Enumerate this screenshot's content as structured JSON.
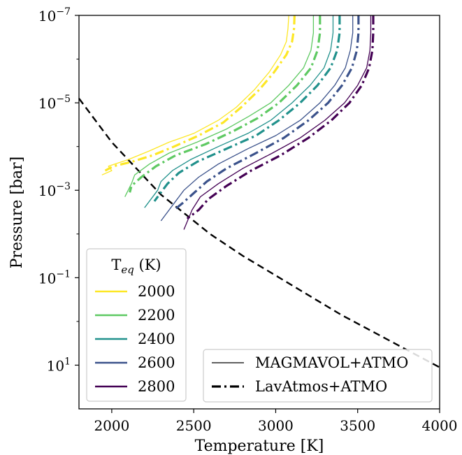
{
  "chart_data": {
    "type": "line",
    "xlabel": "Temperature [K]",
    "ylabel": "Pressure [bar]",
    "xlim": [
      1800,
      4000
    ],
    "ylim_log10": [
      2,
      -7
    ],
    "y_scale": "log (inverted)",
    "x_ticks": [
      2000,
      2500,
      3000,
      3500,
      4000
    ],
    "y_ticks": [
      {
        "value": 1e-07,
        "base": "10",
        "exp": "−7"
      },
      {
        "value": 1e-05,
        "base": "10",
        "exp": "−5"
      },
      {
        "value": 0.001,
        "base": "10",
        "exp": "−3"
      },
      {
        "value": 0.1,
        "base": "10",
        "exp": "−1"
      },
      {
        "value": 10.0,
        "base": "10",
        "exp": "1"
      }
    ],
    "legend_teq": {
      "title_main": "T",
      "title_sub": "eq",
      "title_rest": " (K)",
      "placement": "lower-left",
      "entries": [
        {
          "label": "2000",
          "color": "#fde725"
        },
        {
          "label": "2200",
          "color": "#5ec962"
        },
        {
          "label": "2400",
          "color": "#21918c"
        },
        {
          "label": "2600",
          "color": "#3b528b"
        },
        {
          "label": "2800",
          "color": "#440154"
        }
      ]
    },
    "legend_models": {
      "placement": "lower-right",
      "entries": [
        {
          "label": "MAGMAVOL+ATMO",
          "style": "solid-thin"
        },
        {
          "label": "LavAtmos+ATMO",
          "style": "dashdot-thick"
        }
      ]
    },
    "reference_line": {
      "style": "dashed",
      "color": "#000000",
      "points": [
        [
          1800,
          -5.1
        ],
        [
          2000,
          -4.1
        ],
        [
          2200,
          -3.3
        ],
        [
          2300,
          -2.9
        ],
        [
          2400,
          -2.6
        ],
        [
          2600,
          -2.0
        ],
        [
          2800,
          -1.5
        ],
        [
          3000,
          -1.05
        ],
        [
          3200,
          -0.6
        ],
        [
          3400,
          -0.15
        ],
        [
          3600,
          0.25
        ],
        [
          3800,
          0.65
        ],
        [
          4000,
          1.05
        ]
      ]
    },
    "series": [
      {
        "name": "2000",
        "color": "#fde725",
        "magmavol": [
          [
            3080,
            -7.0
          ],
          [
            3075,
            -6.7
          ],
          [
            3065,
            -6.4
          ],
          [
            3030,
            -6.1
          ],
          [
            2960,
            -5.7
          ],
          [
            2870,
            -5.3
          ],
          [
            2760,
            -4.9
          ],
          [
            2650,
            -4.6
          ],
          [
            2500,
            -4.3
          ],
          [
            2350,
            -4.1
          ],
          [
            2230,
            -3.9
          ],
          [
            2100,
            -3.7
          ],
          [
            1980,
            -3.55
          ],
          [
            2000,
            -3.45
          ],
          [
            1940,
            -3.35
          ]
        ],
        "lavatmos": [
          [
            3115,
            -7.0
          ],
          [
            3112,
            -6.7
          ],
          [
            3100,
            -6.4
          ],
          [
            3065,
            -6.1
          ],
          [
            2990,
            -5.7
          ],
          [
            2900,
            -5.3
          ],
          [
            2790,
            -4.9
          ],
          [
            2680,
            -4.55
          ],
          [
            2530,
            -4.25
          ],
          [
            2380,
            -4.0
          ],
          [
            2250,
            -3.8
          ],
          [
            2120,
            -3.65
          ],
          [
            2010,
            -3.55
          ],
          [
            1960,
            -3.45
          ]
        ]
      },
      {
        "name": "2200",
        "color": "#5ec962",
        "magmavol": [
          [
            3230,
            -7.0
          ],
          [
            3230,
            -6.6
          ],
          [
            3215,
            -6.2
          ],
          [
            3170,
            -5.8
          ],
          [
            3080,
            -5.4
          ],
          [
            2970,
            -5.0
          ],
          [
            2840,
            -4.7
          ],
          [
            2700,
            -4.4
          ],
          [
            2520,
            -4.1
          ],
          [
            2350,
            -3.85
          ],
          [
            2230,
            -3.6
          ],
          [
            2140,
            -3.35
          ],
          [
            2120,
            -3.15
          ],
          [
            2080,
            -2.85
          ]
        ],
        "lavatmos": [
          [
            3270,
            -7.0
          ],
          [
            3270,
            -6.6
          ],
          [
            3255,
            -6.2
          ],
          [
            3215,
            -5.8
          ],
          [
            3130,
            -5.4
          ],
          [
            3020,
            -5.0
          ],
          [
            2890,
            -4.65
          ],
          [
            2740,
            -4.35
          ],
          [
            2570,
            -4.05
          ],
          [
            2390,
            -3.8
          ],
          [
            2270,
            -3.55
          ],
          [
            2180,
            -3.3
          ],
          [
            2120,
            -3.1
          ],
          [
            2110,
            -2.95
          ]
        ]
      },
      {
        "name": "2400",
        "color": "#21918c",
        "magmavol": [
          [
            3350,
            -7.0
          ],
          [
            3350,
            -6.6
          ],
          [
            3335,
            -6.2
          ],
          [
            3295,
            -5.8
          ],
          [
            3210,
            -5.4
          ],
          [
            3100,
            -5.0
          ],
          [
            2970,
            -4.6
          ],
          [
            2830,
            -4.3
          ],
          [
            2650,
            -4.0
          ],
          [
            2480,
            -3.7
          ],
          [
            2370,
            -3.45
          ],
          [
            2300,
            -3.2
          ],
          [
            2280,
            -3.0
          ],
          [
            2200,
            -2.6
          ]
        ],
        "lavatmos": [
          [
            3390,
            -7.0
          ],
          [
            3390,
            -6.6
          ],
          [
            3375,
            -6.2
          ],
          [
            3335,
            -5.8
          ],
          [
            3255,
            -5.4
          ],
          [
            3150,
            -5.0
          ],
          [
            3020,
            -4.6
          ],
          [
            2880,
            -4.25
          ],
          [
            2700,
            -3.95
          ],
          [
            2520,
            -3.65
          ],
          [
            2410,
            -3.4
          ],
          [
            2340,
            -3.15
          ],
          [
            2300,
            -2.95
          ],
          [
            2260,
            -2.75
          ]
        ]
      },
      {
        "name": "2600",
        "color": "#3b528b",
        "magmavol": [
          [
            3470,
            -7.0
          ],
          [
            3470,
            -6.6
          ],
          [
            3455,
            -6.2
          ],
          [
            3425,
            -5.8
          ],
          [
            3360,
            -5.4
          ],
          [
            3270,
            -5.0
          ],
          [
            3150,
            -4.6
          ],
          [
            3000,
            -4.25
          ],
          [
            2830,
            -3.95
          ],
          [
            2650,
            -3.6
          ],
          [
            2530,
            -3.3
          ],
          [
            2440,
            -3.0
          ],
          [
            2400,
            -2.8
          ],
          [
            2300,
            -2.3
          ]
        ],
        "lavatmos": [
          [
            3505,
            -7.0
          ],
          [
            3505,
            -6.6
          ],
          [
            3495,
            -6.2
          ],
          [
            3465,
            -5.8
          ],
          [
            3405,
            -5.4
          ],
          [
            3320,
            -5.0
          ],
          [
            3200,
            -4.6
          ],
          [
            3050,
            -4.2
          ],
          [
            2880,
            -3.85
          ],
          [
            2700,
            -3.5
          ],
          [
            2580,
            -3.2
          ],
          [
            2490,
            -2.9
          ],
          [
            2430,
            -2.7
          ],
          [
            2380,
            -2.55
          ]
        ]
      },
      {
        "name": "2800",
        "color": "#440154",
        "magmavol": [
          [
            3580,
            -7.0
          ],
          [
            3580,
            -6.6
          ],
          [
            3575,
            -6.2
          ],
          [
            3555,
            -5.8
          ],
          [
            3500,
            -5.4
          ],
          [
            3420,
            -5.0
          ],
          [
            3300,
            -4.6
          ],
          [
            3150,
            -4.2
          ],
          [
            2980,
            -3.85
          ],
          [
            2800,
            -3.5
          ],
          [
            2650,
            -3.15
          ],
          [
            2540,
            -2.85
          ],
          [
            2490,
            -2.55
          ],
          [
            2440,
            -2.1
          ]
        ],
        "lavatmos": [
          [
            3595,
            -7.0
          ],
          [
            3595,
            -6.6
          ],
          [
            3590,
            -6.2
          ],
          [
            3570,
            -5.8
          ],
          [
            3525,
            -5.4
          ],
          [
            3450,
            -5.0
          ],
          [
            3340,
            -4.6
          ],
          [
            3200,
            -4.2
          ],
          [
            3030,
            -3.8
          ],
          [
            2850,
            -3.45
          ],
          [
            2700,
            -3.1
          ],
          [
            2590,
            -2.8
          ],
          [
            2530,
            -2.55
          ],
          [
            2460,
            -2.35
          ]
        ]
      }
    ]
  }
}
